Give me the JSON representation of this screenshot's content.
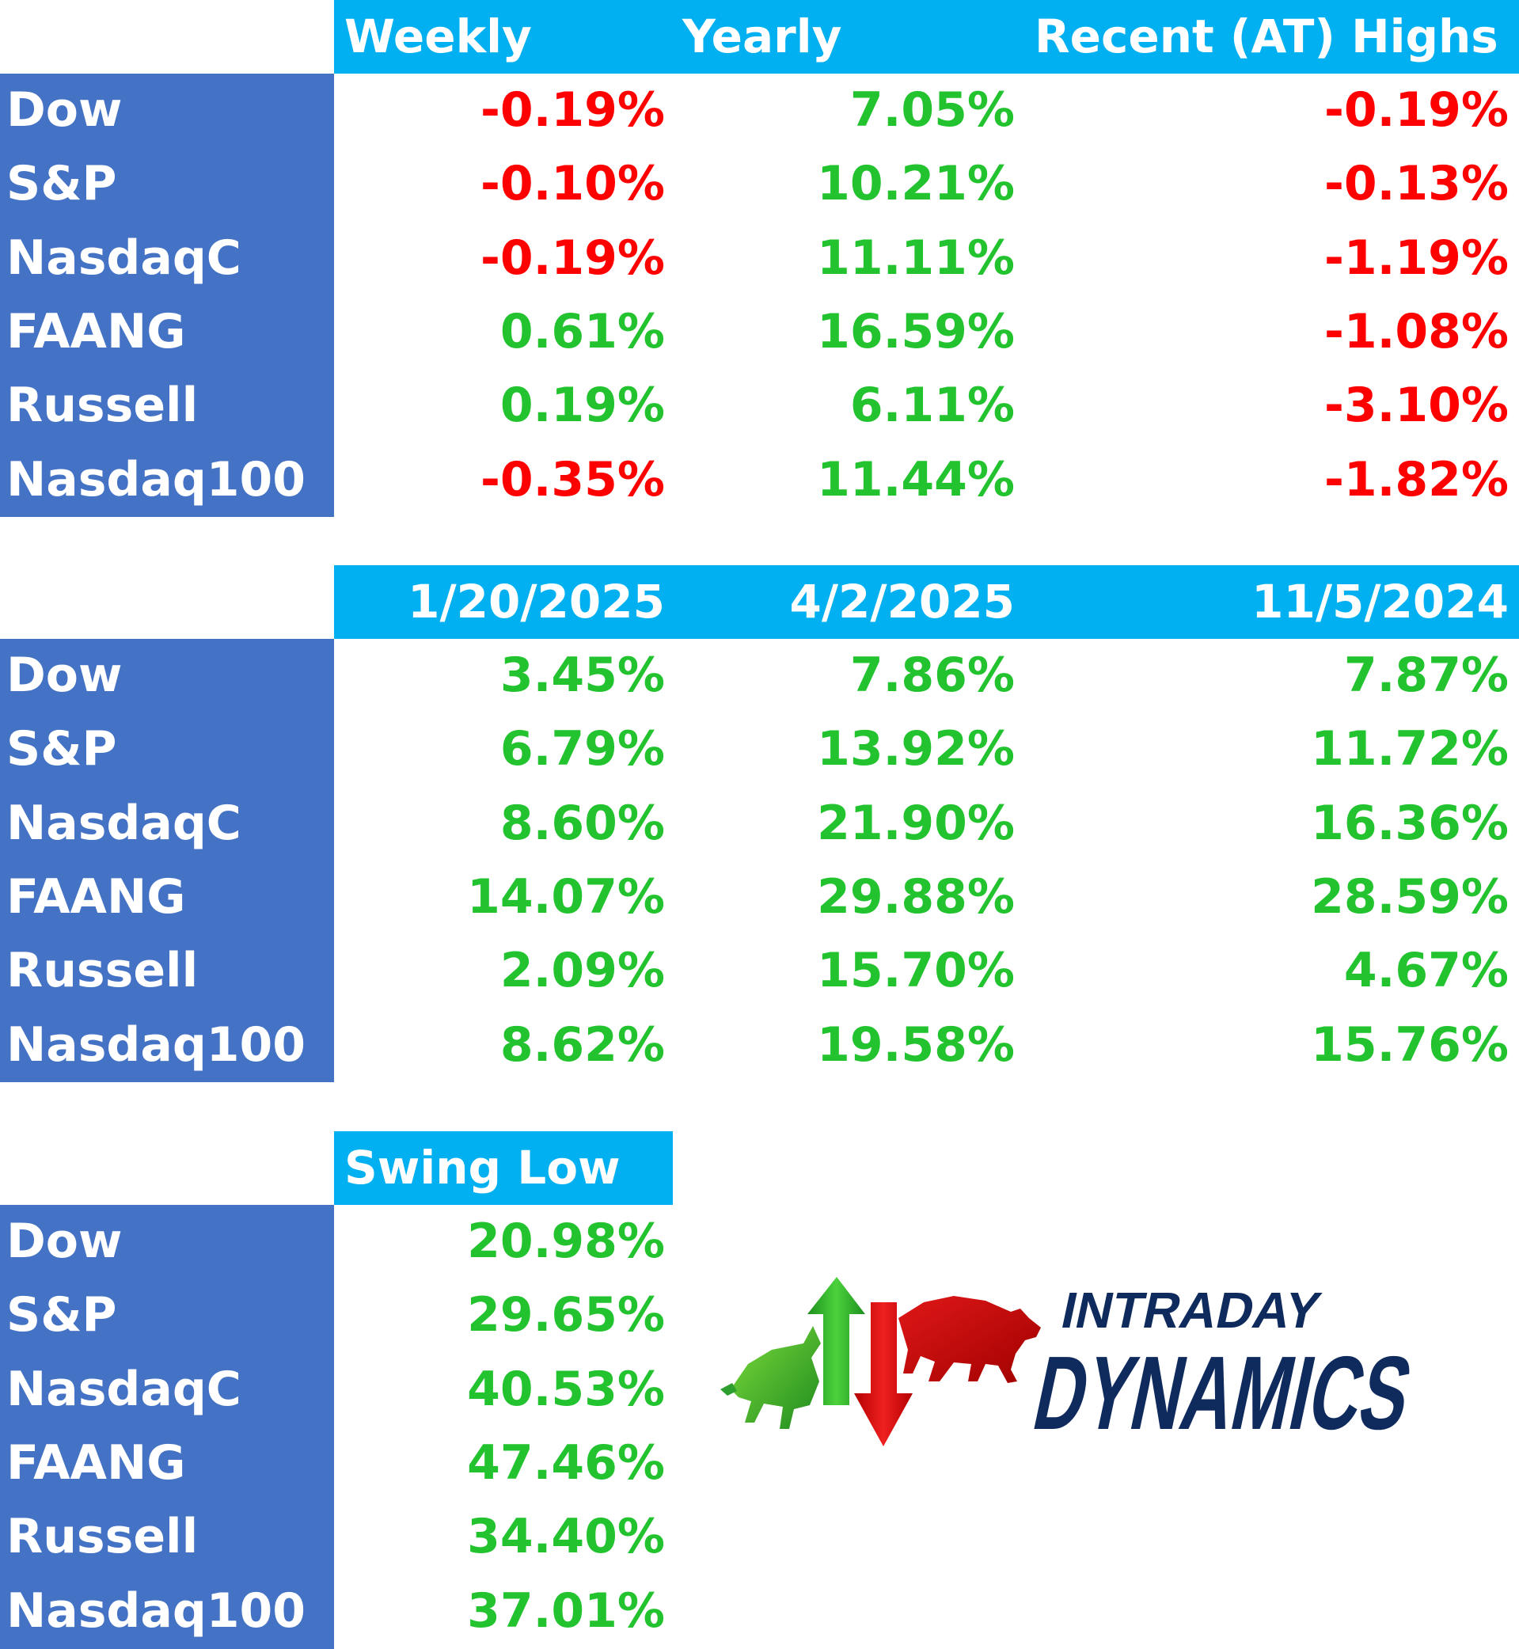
{
  "colors": {
    "header_bg": "#00B0F0",
    "label_bg": "#4472C4",
    "positive": "#22C32E",
    "negative": "#FF0000",
    "logo_navy": "#0F2A5C"
  },
  "tables": [
    {
      "headers": [
        "Weekly",
        "Yearly",
        "Recent (AT) Highs"
      ],
      "rows": [
        {
          "label": "Dow",
          "values": [
            "-0.19%",
            "7.05%",
            "-0.19%"
          ]
        },
        {
          "label": "S&P",
          "values": [
            "-0.10%",
            "10.21%",
            "-0.13%"
          ]
        },
        {
          "label": "NasdaqC",
          "values": [
            "-0.19%",
            "11.11%",
            "-1.19%"
          ]
        },
        {
          "label": "FAANG",
          "values": [
            "0.61%",
            "16.59%",
            "-1.08%"
          ]
        },
        {
          "label": "Russell",
          "values": [
            "0.19%",
            "6.11%",
            "-3.10%"
          ]
        },
        {
          "label": "Nasdaq100",
          "values": [
            "-0.35%",
            "11.44%",
            "-1.82%"
          ]
        }
      ]
    },
    {
      "headers": [
        "1/20/2025",
        "4/2/2025",
        "11/5/2024"
      ],
      "rows": [
        {
          "label": "Dow",
          "values": [
            "3.45%",
            "7.86%",
            "7.87%"
          ]
        },
        {
          "label": "S&P",
          "values": [
            "6.79%",
            "13.92%",
            "11.72%"
          ]
        },
        {
          "label": "NasdaqC",
          "values": [
            "8.60%",
            "21.90%",
            "16.36%"
          ]
        },
        {
          "label": "FAANG",
          "values": [
            "14.07%",
            "29.88%",
            "28.59%"
          ]
        },
        {
          "label": "Russell",
          "values": [
            "2.09%",
            "15.70%",
            "4.67%"
          ]
        },
        {
          "label": "Nasdaq100",
          "values": [
            "8.62%",
            "19.58%",
            "15.76%"
          ]
        }
      ]
    },
    {
      "headers": [
        "Swing Low"
      ],
      "rows": [
        {
          "label": "Dow",
          "values": [
            "20.98%"
          ]
        },
        {
          "label": "S&P",
          "values": [
            "29.65%"
          ]
        },
        {
          "label": "NasdaqC",
          "values": [
            "40.53%"
          ]
        },
        {
          "label": "FAANG",
          "values": [
            "47.46%"
          ]
        },
        {
          "label": "Russell",
          "values": [
            "34.40%"
          ]
        },
        {
          "label": "Nasdaq100",
          "values": [
            "37.01%"
          ]
        }
      ]
    }
  ],
  "logo": {
    "line1": "INTRADAY",
    "line2": "DYNAMICS",
    "icons": [
      "bull-icon",
      "up-arrow-icon",
      "down-arrow-icon",
      "bear-icon"
    ]
  }
}
